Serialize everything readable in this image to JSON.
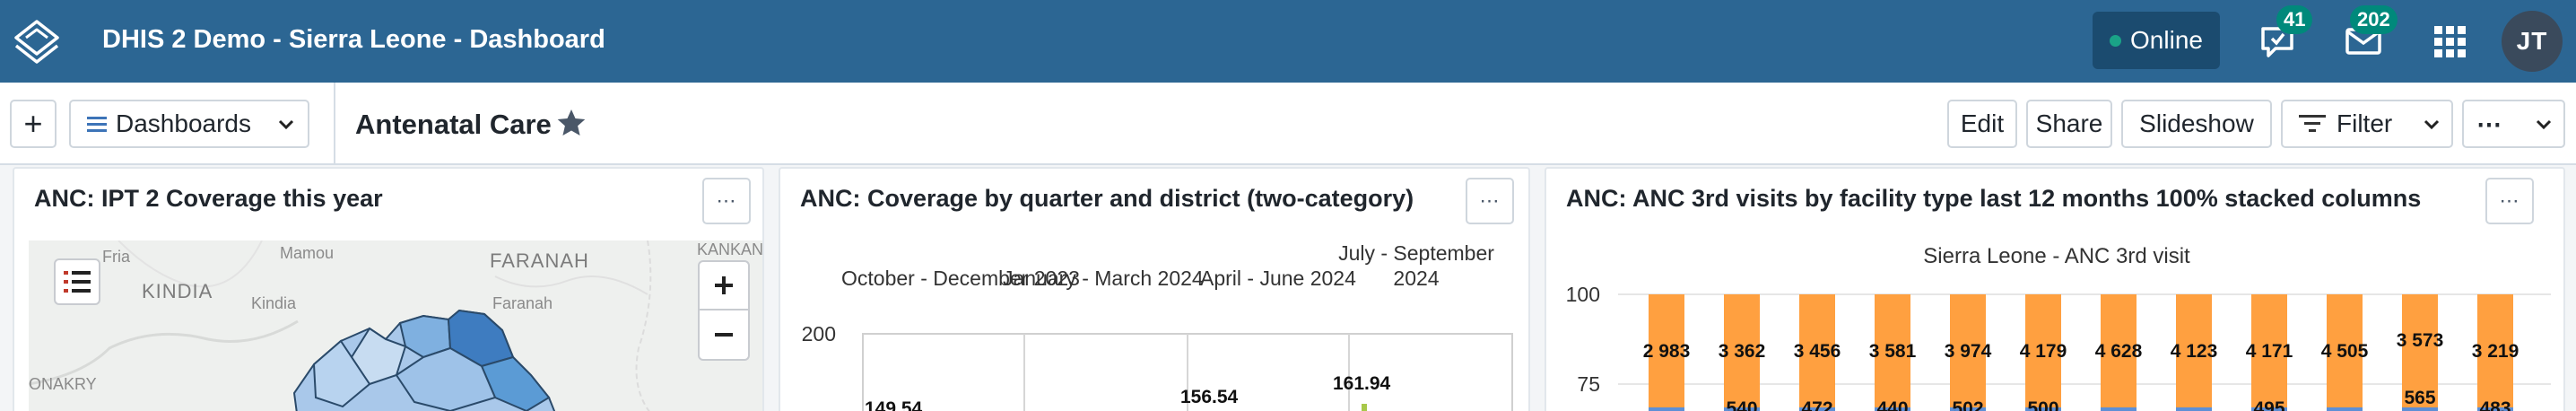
{
  "header": {
    "title": "DHIS 2 Demo - Sierra Leone - Dashboard",
    "online_label": "Online",
    "interpretations_count": "41",
    "messages_count": "202",
    "user_initials": "JT"
  },
  "controlbar": {
    "add_label": "+",
    "dashboards_label": "Dashboards",
    "dashboard_title": "Antenatal Care",
    "edit_label": "Edit",
    "share_label": "Share",
    "slideshow_label": "Slideshow",
    "filter_label": "Filter",
    "more_label": "⋯"
  },
  "panels": [
    {
      "title": "ANC: IPT 2 Coverage this year",
      "menu_label": "⋯",
      "map_labels": [
        "Fria",
        "Mamou",
        "FARANAH",
        "KANKAN",
        "KINDIA",
        "Kindia",
        "Faranah",
        "ONAKRY"
      ]
    },
    {
      "title": "ANC: Coverage by quarter and district (two-category)",
      "menu_label": "⋯",
      "chart_data": {
        "type": "bar",
        "categories": [
          "October - December 2023",
          "January - March 2024",
          "April - June 2024",
          "July - September 2024"
        ],
        "y_tick_labels": [
          "200"
        ],
        "visible_values": [
          "149.54",
          "156.54",
          "161.94"
        ]
      }
    },
    {
      "title": "ANC: ANC 3rd visits by facility type last 12 months 100% stacked columns",
      "menu_label": "⋯",
      "chart_data": {
        "type": "bar",
        "title": "Sierra Leone - ANC 3rd visit",
        "y_tick_labels": [
          "100",
          "75"
        ],
        "series": [
          {
            "values": [
              "2 983",
              "3 362",
              "3 456",
              "3 581",
              "3 974",
              "4 179",
              "4 628",
              "4 123",
              "4 171",
              "4 505",
              "3 573",
              "3 219"
            ]
          },
          {
            "values": [
              "",
              "540",
              "472",
              "440",
              "502",
              "500",
              "",
              "",
              "495",
              "",
              "565",
              "483"
            ]
          }
        ]
      }
    }
  ],
  "colors": {
    "header_bg": "#2c6693",
    "online_bg": "#1b4b6f",
    "badge": "#00897b",
    "stack_orange": "#ffa040",
    "stack_blue": "#5d8fd6",
    "map_choropleth": "#5b9bd5"
  }
}
